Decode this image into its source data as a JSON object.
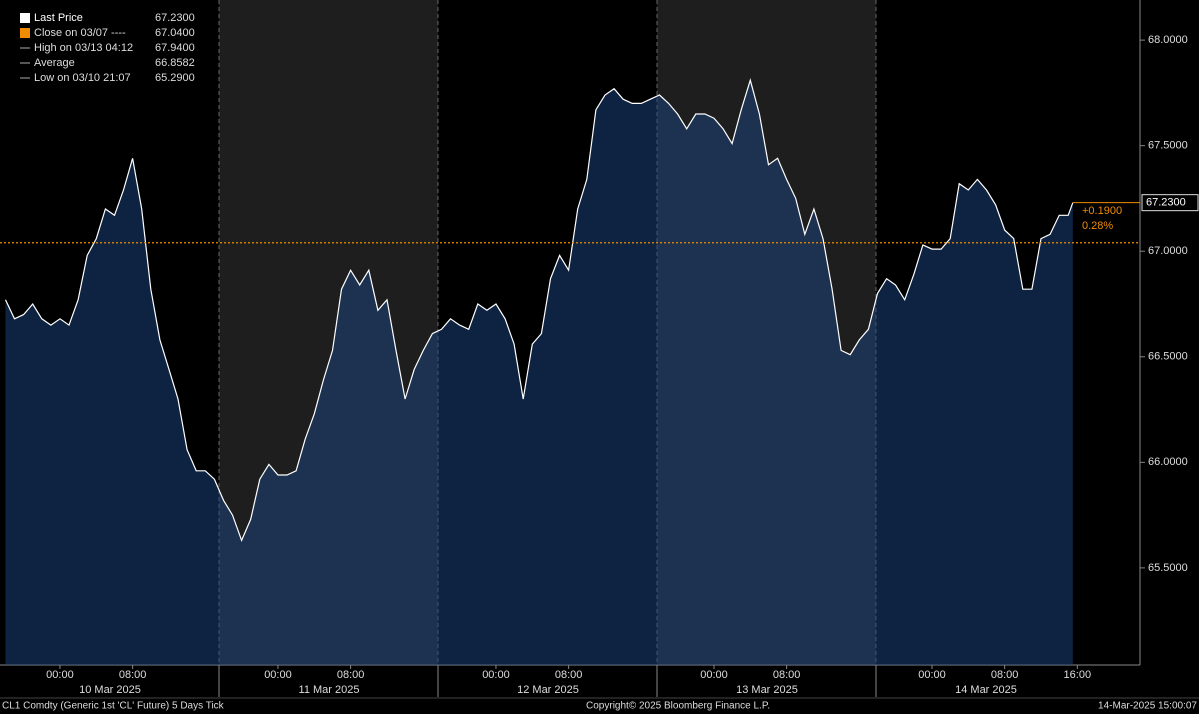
{
  "chart_data": {
    "type": "line",
    "x": [
      -6,
      -5,
      -4,
      -3,
      -2,
      -1,
      0,
      1,
      2,
      3,
      4,
      5,
      6,
      7,
      8,
      9,
      10,
      11,
      12,
      13,
      14,
      15,
      16,
      17,
      18,
      19,
      20,
      21,
      22,
      23,
      24,
      25,
      26,
      27,
      28,
      29,
      30,
      31,
      32,
      33,
      34,
      35,
      36,
      37,
      38,
      39,
      40,
      41,
      42,
      43,
      44,
      45,
      46,
      47,
      48,
      49,
      50,
      51,
      52,
      53,
      54,
      55,
      56,
      57,
      58,
      59,
      60,
      61,
      62,
      63,
      64,
      65,
      66,
      67,
      68,
      69,
      70,
      71,
      72,
      73,
      74,
      75,
      76,
      77,
      78,
      79,
      80,
      81,
      82,
      83,
      84,
      85,
      86,
      87,
      88,
      89,
      90,
      91,
      92,
      93,
      94,
      95,
      96,
      97,
      98,
      99,
      100,
      101,
      102,
      103,
      104,
      105,
      106,
      107,
      108,
      109,
      110,
      111,
      111.5
    ],
    "series": [
      {
        "name": "Last Price",
        "color": "#ffffff",
        "values": [
          66.77,
          66.68,
          66.7,
          66.75,
          66.68,
          66.65,
          66.68,
          66.65,
          66.77,
          66.98,
          67.06,
          67.2,
          67.17,
          67.29,
          67.44,
          67.2,
          66.82,
          66.58,
          66.44,
          66.3,
          66.06,
          65.96,
          65.96,
          65.92,
          65.82,
          65.75,
          65.63,
          65.73,
          65.92,
          65.99,
          65.94,
          65.94,
          65.96,
          66.11,
          66.23,
          66.39,
          66.53,
          66.82,
          66.91,
          66.84,
          66.91,
          66.72,
          66.77,
          66.53,
          66.3,
          66.44,
          66.53,
          66.61,
          66.63,
          66.68,
          66.65,
          66.63,
          66.75,
          66.72,
          66.75,
          66.68,
          66.56,
          66.3,
          66.56,
          66.61,
          66.87,
          66.98,
          66.91,
          67.2,
          67.34,
          67.67,
          67.74,
          67.77,
          67.72,
          67.7,
          67.7,
          67.72,
          67.74,
          67.7,
          67.65,
          67.58,
          67.65,
          67.65,
          67.63,
          67.58,
          67.51,
          67.67,
          67.81,
          67.65,
          67.41,
          67.44,
          67.34,
          67.25,
          67.08,
          67.2,
          67.06,
          66.82,
          66.53,
          66.51,
          66.58,
          66.63,
          66.8,
          66.87,
          66.84,
          66.77,
          66.89,
          67.03,
          67.01,
          67.01,
          67.06,
          67.32,
          67.29,
          67.34,
          67.29,
          67.22,
          67.1,
          67.06,
          66.82,
          66.82,
          67.06,
          67.08,
          67.17,
          67.17,
          67.23
        ]
      }
    ],
    "xlim": [
      -6.6,
      118.9
    ],
    "ylim": [
      65.04,
      68.19
    ],
    "yticks": [
      {
        "value": 65.5,
        "label": "65.5000"
      },
      {
        "value": 66,
        "label": "66.0000"
      },
      {
        "value": 66.5,
        "label": "66.5000"
      },
      {
        "value": 67,
        "label": "67.0000"
      },
      {
        "value": 67.5,
        "label": "67.5000"
      },
      {
        "value": 68,
        "label": "68.0000"
      }
    ],
    "xticks": [
      {
        "value": 0,
        "label": "00:00"
      },
      {
        "value": 8,
        "label": "08:00"
      },
      {
        "value": 24,
        "label": "00:00"
      },
      {
        "value": 32,
        "label": "08:00"
      },
      {
        "value": 48,
        "label": "00:00"
      },
      {
        "value": 56,
        "label": "08:00"
      },
      {
        "value": 72,
        "label": "00:00"
      },
      {
        "value": 80,
        "label": "08:00"
      },
      {
        "value": 96,
        "label": "00:00"
      },
      {
        "value": 104,
        "label": "08:00"
      },
      {
        "value": 112,
        "label": "16:00"
      }
    ],
    "dates": [
      "10 Mar 2025",
      "11 Mar 2025",
      "12 Mar 2025",
      "13 Mar 2025",
      "14 Mar 2025"
    ],
    "last_value": {
      "value": 67.23,
      "label": "67.2300"
    },
    "stats": [
      {
        "name": "Close on 03/07 ----",
        "value": 67.04,
        "label": "67.0400",
        "color": "#f08c00"
      },
      {
        "name": "High on 03/13 04:12",
        "value": 67.94,
        "label": "67.9400"
      },
      {
        "name": "Average",
        "value": 66.8582,
        "label": "66.8582"
      },
      {
        "name": "Low on 03/10 21:07",
        "value": 65.29,
        "label": "65.2900"
      }
    ],
    "change": "+0.1900",
    "change_pct": "0.28%",
    "footer": {
      "left": "CL1 Comdty (Generic 1st 'CL' Future) 5 Days  Tick",
      "center": "Copyright© 2025 Bloomberg Finance L.P.",
      "right": "14-Mar-2025 15:00:07"
    }
  }
}
